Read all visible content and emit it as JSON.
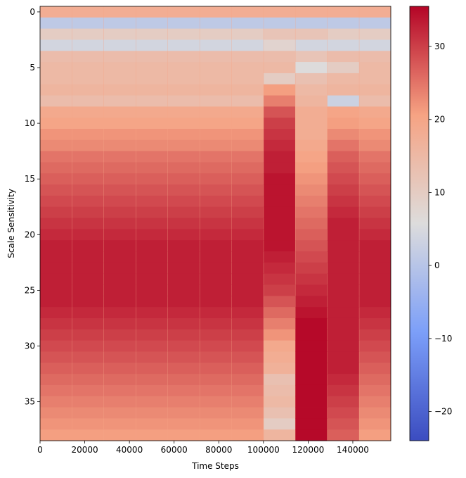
{
  "chart_data": {
    "type": "heatmap",
    "title": "",
    "xlabel": "Time Steps",
    "ylabel": "Scale Sensitivity",
    "x_ticks": [
      0,
      20000,
      40000,
      60000,
      80000,
      100000,
      120000,
      140000
    ],
    "x_tick_labels": [
      "0",
      "20000",
      "40000",
      "60000",
      "80000",
      "100000",
      "120000",
      "140000"
    ],
    "y_ticks": [
      0,
      5,
      10,
      15,
      20,
      25,
      30,
      35
    ],
    "y_tick_labels": [
      "0",
      "5",
      "10",
      "15",
      "20",
      "25",
      "30",
      "35"
    ],
    "xlim": [
      0,
      157000
    ],
    "ylim": [
      38.5,
      -0.5
    ],
    "colormap": "coolwarm",
    "vmin": -24,
    "vmax": 35.5,
    "colorbar_ticks": [
      -20,
      -10,
      0,
      10,
      20,
      30
    ],
    "colorbar_tick_labels": [
      "−20",
      "−10",
      "0",
      "10",
      "20",
      "30"
    ],
    "block_separator_value": 20,
    "blocks": [
      {
        "x_start": 0,
        "x_end": 14200,
        "values": [
          18,
          1,
          10,
          4,
          14,
          15,
          15,
          16,
          14,
          19,
          20,
          22,
          23,
          25,
          26,
          27,
          28,
          29,
          30,
          31,
          32,
          33,
          33,
          33,
          33,
          33,
          33,
          32,
          31,
          30,
          29,
          28,
          27,
          26,
          25,
          24,
          23,
          22,
          21
        ]
      },
      {
        "x_start": 14300,
        "x_end": 28500,
        "values": [
          18,
          1,
          10,
          4,
          14,
          15,
          15,
          16,
          14,
          19,
          20,
          22,
          23,
          25,
          26,
          27,
          28,
          29,
          30,
          31,
          32,
          33,
          33,
          33,
          33,
          33,
          33,
          32,
          31,
          30,
          29,
          28,
          27,
          26,
          25,
          24,
          23,
          22,
          21
        ]
      },
      {
        "x_start": 28600,
        "x_end": 42800,
        "values": [
          18,
          1,
          10,
          4,
          14,
          15,
          15,
          16,
          14,
          19,
          20,
          22,
          23,
          25,
          26,
          27,
          28,
          29,
          30,
          31,
          32,
          33,
          33,
          33,
          33,
          33,
          33,
          32,
          31,
          30,
          29,
          28,
          27,
          26,
          25,
          24,
          23,
          22,
          21
        ]
      },
      {
        "x_start": 42900,
        "x_end": 57100,
        "values": [
          18,
          1,
          10,
          4,
          14,
          15,
          15,
          16,
          14,
          19,
          20,
          22,
          23,
          25,
          26,
          27,
          28,
          29,
          30,
          31,
          32,
          33,
          33,
          33,
          33,
          33,
          33,
          32,
          31,
          30,
          29,
          28,
          27,
          26,
          25,
          24,
          23,
          22,
          21
        ]
      },
      {
        "x_start": 57200,
        "x_end": 71400,
        "values": [
          18,
          1,
          10,
          4,
          14,
          15,
          15,
          16,
          14,
          19,
          20,
          22,
          23,
          25,
          26,
          27,
          28,
          29,
          30,
          31,
          32,
          33,
          33,
          33,
          33,
          33,
          33,
          32,
          31,
          30,
          29,
          28,
          27,
          26,
          25,
          24,
          23,
          22,
          21
        ]
      },
      {
        "x_start": 71500,
        "x_end": 85700,
        "values": [
          18,
          1,
          10,
          4,
          14,
          15,
          15,
          16,
          14,
          19,
          20,
          22,
          23,
          25,
          26,
          27,
          28,
          29,
          30,
          31,
          32,
          33,
          33,
          33,
          33,
          33,
          33,
          32,
          31,
          30,
          29,
          28,
          27,
          26,
          25,
          24,
          23,
          22,
          21
        ]
      },
      {
        "x_start": 85800,
        "x_end": 100000,
        "values": [
          18,
          1,
          10,
          4,
          14,
          15,
          15,
          16,
          14,
          19,
          20,
          22,
          23,
          25,
          26,
          27,
          28,
          29,
          30,
          31,
          32,
          33,
          33,
          33,
          33,
          33,
          33,
          32,
          31,
          30,
          29,
          28,
          27,
          26,
          25,
          24,
          23,
          22,
          21
        ]
      },
      {
        "x_start": 100100,
        "x_end": 114200,
        "values": [
          18,
          1,
          12,
          8,
          14,
          15,
          10,
          21,
          24,
          28,
          30,
          31,
          32,
          33,
          33,
          34,
          34,
          34,
          34,
          34,
          34,
          34,
          33,
          32,
          31,
          30,
          28,
          26,
          24,
          22,
          19,
          18,
          17,
          13,
          14,
          15,
          13,
          10,
          16
        ]
      },
      {
        "x_start": 114300,
        "x_end": 128500,
        "values": [
          18,
          1,
          12,
          4,
          12,
          6,
          13,
          15,
          16,
          18,
          18,
          18,
          19,
          20,
          21,
          22,
          23,
          24,
          25,
          26,
          27,
          28,
          29,
          30,
          31,
          32,
          33,
          34,
          35,
          35,
          35,
          35,
          35,
          35,
          35,
          35,
          35,
          35,
          35
        ]
      },
      {
        "x_start": 128600,
        "x_end": 142800,
        "values": [
          18,
          1,
          10,
          4,
          14,
          10,
          15,
          16,
          3,
          20,
          21,
          23,
          25,
          27,
          28,
          29,
          30,
          31,
          32,
          33,
          33,
          33,
          33,
          33,
          33,
          33,
          33,
          33,
          33,
          33,
          33,
          33,
          33,
          32,
          31,
          30,
          29,
          28,
          27
        ]
      },
      {
        "x_start": 142900,
        "x_end": 157000,
        "values": [
          18,
          1,
          10,
          4,
          14,
          15,
          15,
          16,
          14,
          19,
          20,
          22,
          23,
          25,
          26,
          27,
          28,
          29,
          30,
          31,
          32,
          33,
          33,
          33,
          33,
          33,
          33,
          32,
          31,
          30,
          29,
          28,
          27,
          26,
          25,
          24,
          23,
          22,
          21
        ]
      }
    ]
  }
}
